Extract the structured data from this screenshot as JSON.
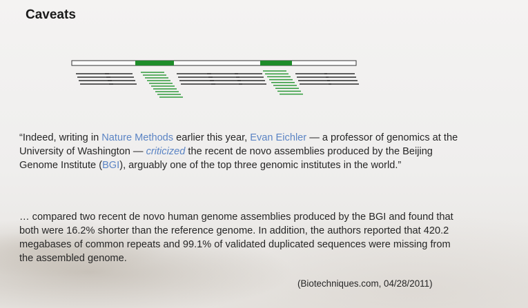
{
  "title": "Caveats",
  "quote": {
    "open_mark": "“",
    "t1": "Indeed, writing in ",
    "journal": "Nature Methods",
    "t2": " earlier this year, ",
    "person": "Evan Eichler",
    "t3": " — a professor of genomics at the University of Washington — ",
    "verb": "criticized",
    "t4": " the recent de novo assemblies produced by the Beijing Genome Institute (",
    "org": "BGI",
    "t5": "), arguably one of the top three genomic institutes in the world.",
    "close_mark": "”"
  },
  "body": "… compared two recent de novo human genome assemblies produced by the BGI and found that both were 16.2% shorter than the reference genome. In addition, the authors reported that 420.2 megabases of common repeats and 99.1% of validated duplicated sequences were missing from the assembled genome.",
  "citation": "(Biotechniques.com, 04/28/2011)",
  "colors": {
    "repeat_region": "#1e8c2a",
    "repeat_reads": "#2f9a3a",
    "unique_reads": "#2b2b2b",
    "link": "#5b84c4"
  }
}
